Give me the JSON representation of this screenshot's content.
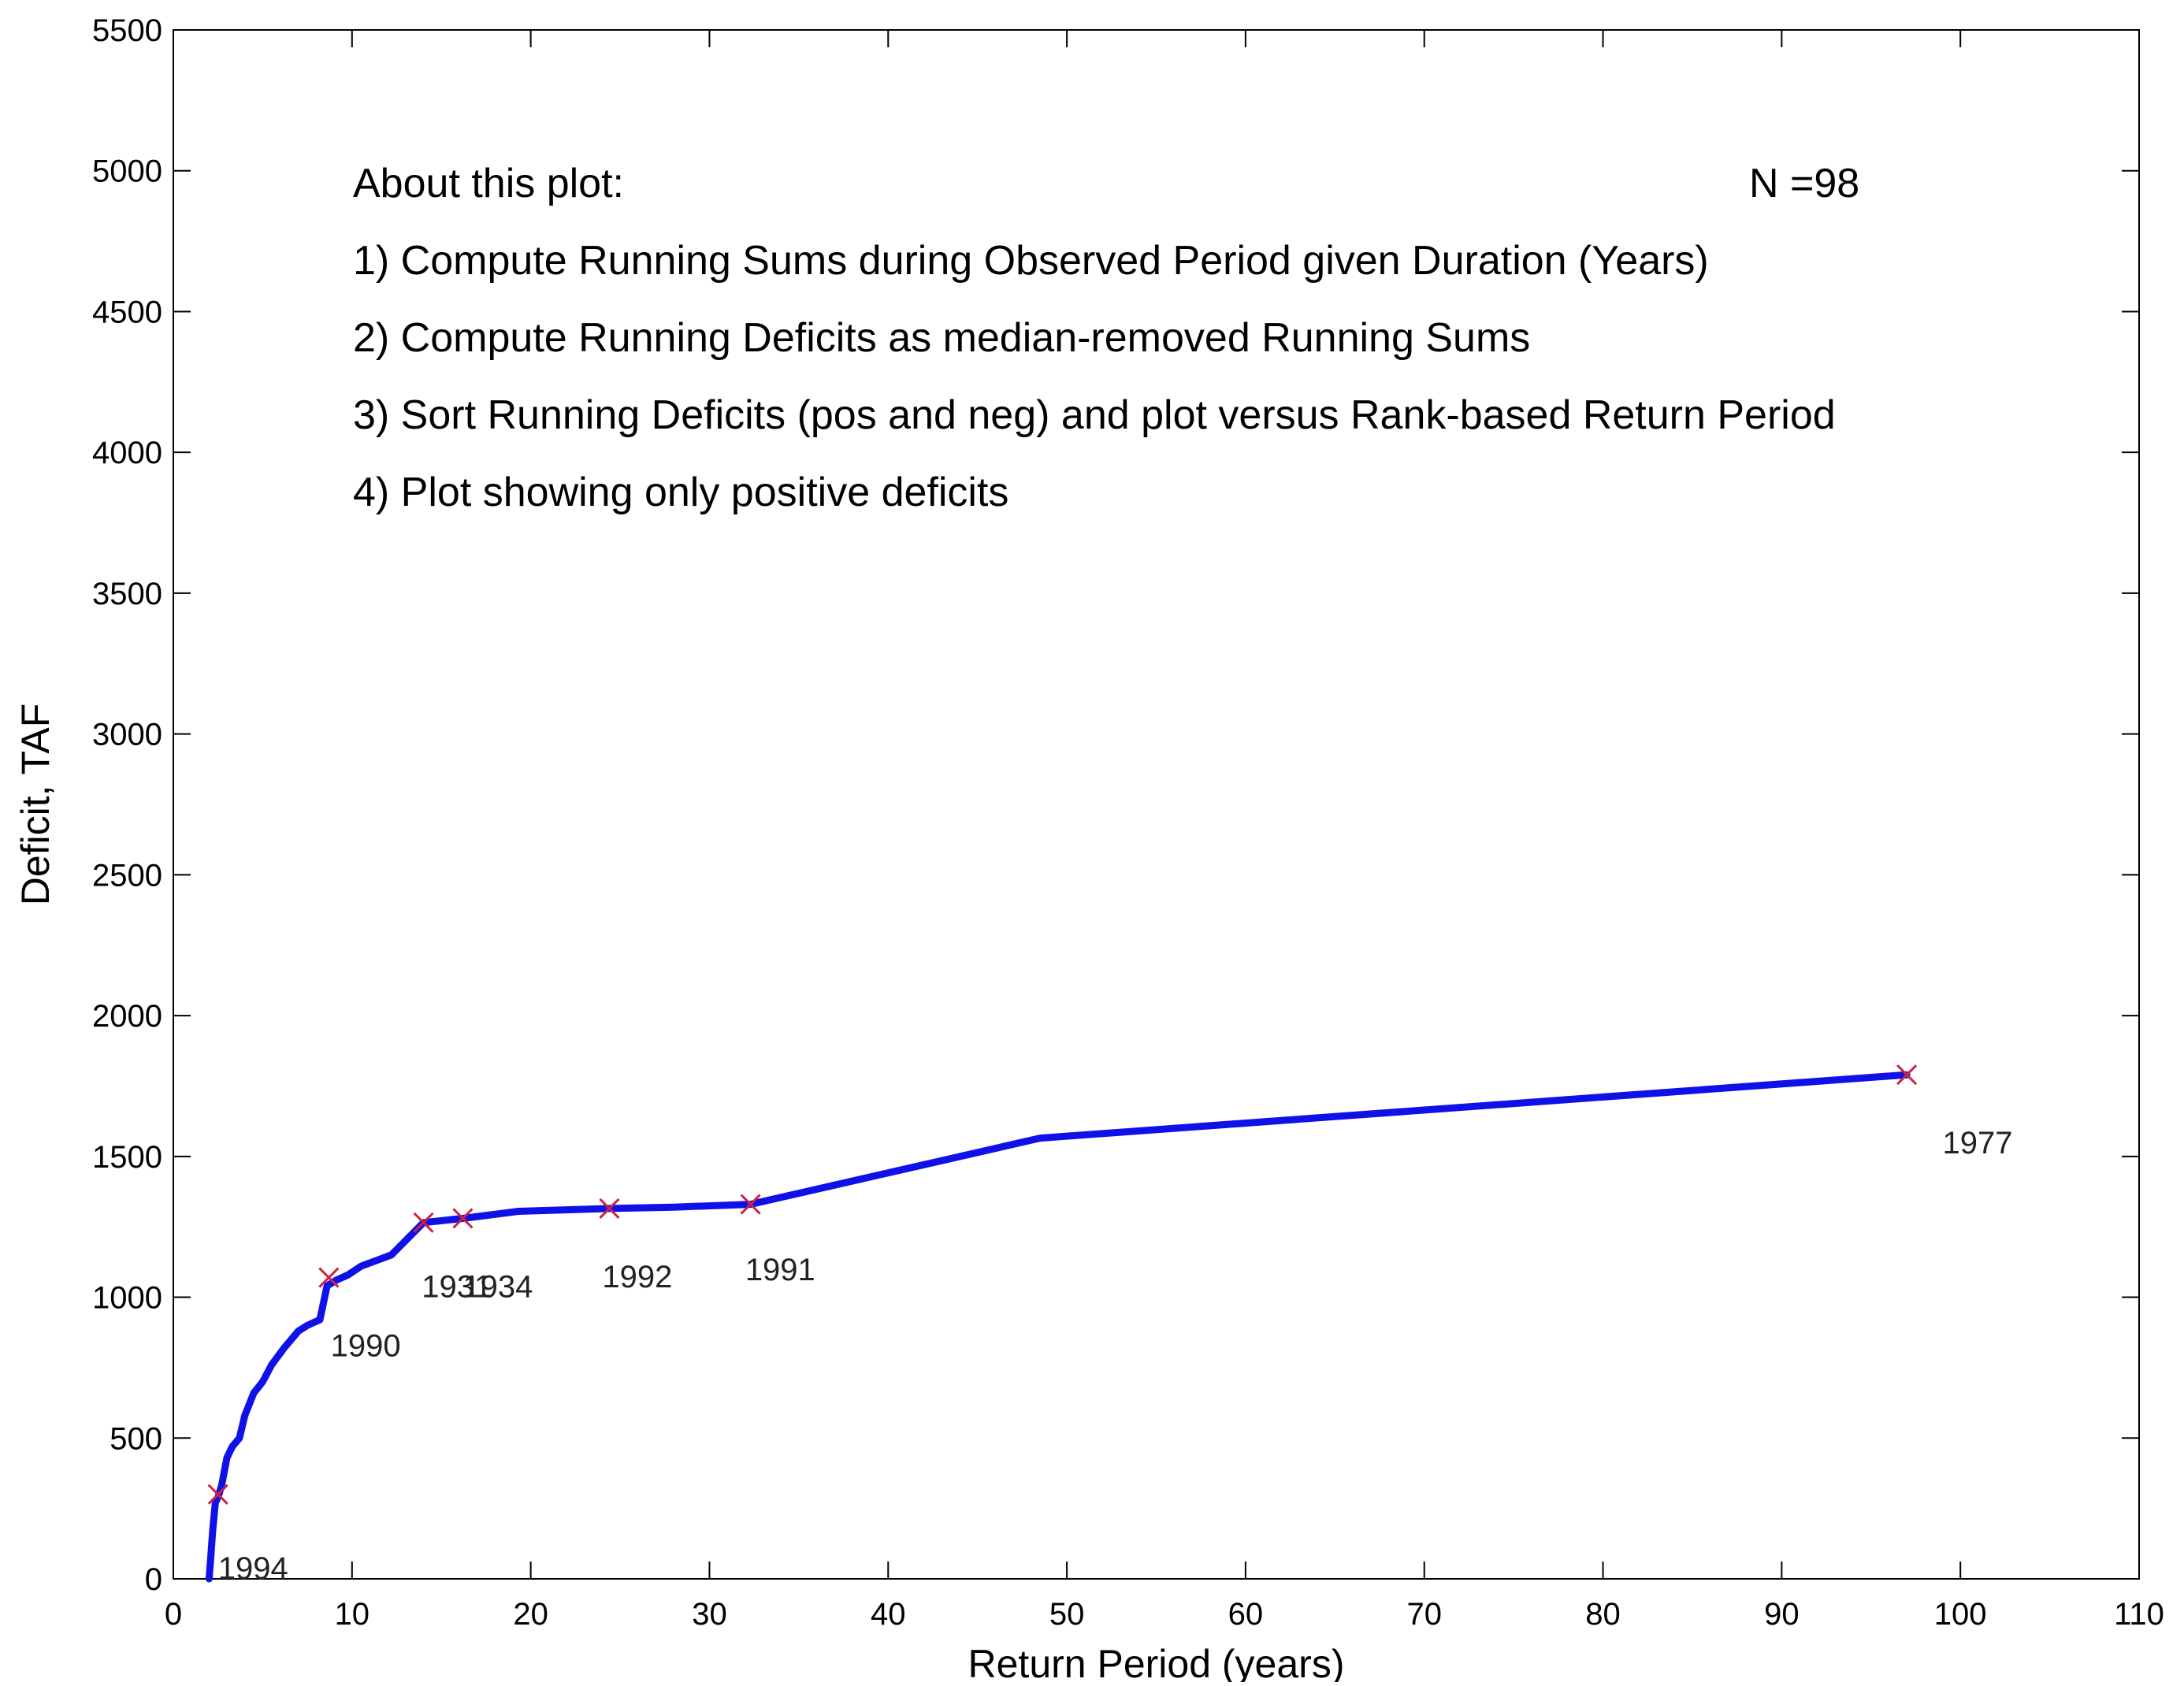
{
  "chart_data": {
    "type": "line",
    "title": "",
    "xlabel": "Return Period (years)",
    "ylabel": "Deficit, TAF",
    "xlim": [
      0,
      110
    ],
    "ylim": [
      0,
      5500
    ],
    "x_ticks": [
      0,
      10,
      20,
      30,
      40,
      50,
      60,
      70,
      80,
      90,
      100,
      110
    ],
    "y_ticks": [
      0,
      500,
      1000,
      1500,
      2000,
      2500,
      3000,
      3500,
      4000,
      4500,
      5000,
      5500
    ],
    "grid": false,
    "colors": {
      "line": "#1010e8",
      "markers": "#cc2244",
      "axes": "#000000"
    },
    "series": [
      {
        "x": [
          2.0,
          2.1,
          2.2,
          2.35,
          2.5,
          2.7,
          3.0,
          3.3,
          3.7,
          4.0,
          4.5,
          5.0,
          5.5,
          6.2,
          6.6,
          7.0,
          7.5,
          8.2,
          8.6,
          9.1,
          9.8,
          10.5,
          12.2,
          14.0,
          16.2,
          19.3,
          24.4,
          28.0,
          32.3,
          48.5,
          97.0
        ],
        "y": [
          0,
          80,
          170,
          270,
          290,
          330,
          430,
          470,
          500,
          580,
          660,
          700,
          760,
          820,
          850,
          880,
          900,
          920,
          1040,
          1060,
          1080,
          1110,
          1150,
          1265,
          1280,
          1305,
          1315,
          1320,
          1330,
          1565,
          1790
        ]
      }
    ],
    "markers": [
      {
        "x": 2.5,
        "y": 300
      },
      {
        "x": 8.7,
        "y": 1070
      },
      {
        "x": 14.0,
        "y": 1265
      },
      {
        "x": 16.2,
        "y": 1280
      },
      {
        "x": 24.4,
        "y": 1315
      },
      {
        "x": 32.3,
        "y": 1330
      },
      {
        "x": 97.0,
        "y": 1790
      }
    ],
    "point_labels": [
      {
        "text": "1994",
        "x": 2.5,
        "y": 0
      },
      {
        "text": "1990",
        "x": 8.8,
        "y": 790
      },
      {
        "text": "1931",
        "x": 13.9,
        "y": 1000
      },
      {
        "text": "1934",
        "x": 16.2,
        "y": 1000
      },
      {
        "text": "1992",
        "x": 24.0,
        "y": 1035
      },
      {
        "text": "1991",
        "x": 32.0,
        "y": 1060
      },
      {
        "text": "1977",
        "x": 99.0,
        "y": 1510
      }
    ],
    "annotations": {
      "heading": "About this plot:",
      "n_label": "N =98",
      "lines": [
        "1) Compute Running Sums during Observed Period given Duration (Years)",
        "2) Compute Running Deficits as median-removed Running Sums",
        "3) Sort Running Deficits (pos and neg) and plot versus Rank-based Return Period",
        "4) Plot showing only positive deficits"
      ]
    }
  }
}
